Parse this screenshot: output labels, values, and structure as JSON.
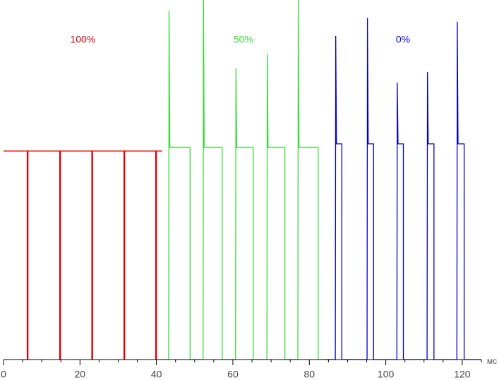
{
  "chart_data": {
    "type": "line",
    "x_label": "мс",
    "xlim": [
      0,
      125
    ],
    "xticks": [
      0,
      20,
      40,
      60,
      80,
      100,
      120
    ],
    "xminorticks": [
      5,
      10,
      15,
      25,
      30,
      35,
      45,
      50,
      55,
      65,
      70,
      75,
      85,
      90,
      95,
      105,
      110,
      115,
      125
    ],
    "ylim": [
      0,
      100
    ],
    "series": [
      {
        "name": "100%",
        "color": "#e00000",
        "x": [
          0,
          6.2,
          6.2,
          6.4,
          6.4,
          14.7,
          14.7,
          14.9,
          14.9,
          23.1,
          23.1,
          23.3,
          23.3,
          31.5,
          31.5,
          31.7,
          31.7,
          39.8,
          39.8,
          40,
          40,
          41.5
        ],
        "values": [
          58,
          58,
          0,
          0,
          58,
          58,
          0,
          0,
          58,
          58,
          0,
          0,
          58,
          58,
          0,
          0,
          58,
          58,
          0,
          0,
          58,
          58
        ]
      },
      {
        "name": "50%",
        "color": "#33dd33",
        "x": [
          41.5,
          43.2,
          43.3,
          43.5,
          48.8,
          48.8,
          52.2,
          52.3,
          52.5,
          57.2,
          57.2,
          60.7,
          60.8,
          61,
          65.3,
          65.3,
          68.9,
          69,
          69.2,
          73.6,
          73.6,
          77,
          77.1,
          77.3,
          82.3,
          82.3,
          84
        ],
        "values": [
          0,
          0,
          97,
          59,
          59,
          0,
          0,
          100,
          59,
          59,
          0,
          0,
          81,
          59,
          59,
          0,
          0,
          85,
          59,
          59,
          0,
          0,
          100,
          59,
          59,
          0,
          0
        ]
      },
      {
        "name": "0%",
        "color": "#0000cc",
        "x": [
          84,
          86.8,
          86.9,
          87.1,
          88.5,
          88.5,
          95.1,
          95.2,
          95.4,
          96.8,
          96.8,
          102.9,
          103,
          103.2,
          104.6,
          104.6,
          110.8,
          110.9,
          111.1,
          112.6,
          112.6,
          118.6,
          118.7,
          118.9,
          120.5,
          120.5,
          125
        ],
        "values": [
          0,
          0,
          90,
          60,
          60,
          0,
          0,
          95,
          60,
          60,
          0,
          0,
          77,
          60,
          60,
          0,
          0,
          80,
          60,
          60,
          0,
          0,
          94,
          60,
          60,
          0,
          0
        ]
      }
    ]
  }
}
